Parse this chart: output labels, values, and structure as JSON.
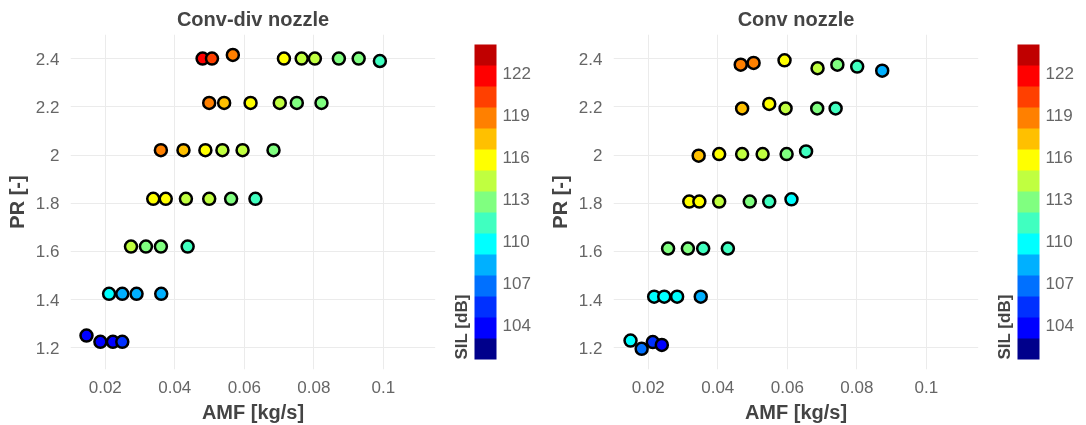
{
  "chart_data": [
    {
      "type": "scatter",
      "title": "Conv-div nozzle",
      "xlabel": "AMF [kg/s]",
      "ylabel": "PR [-]",
      "clabel": "SIL [dB]",
      "marker": "circle",
      "grid": true,
      "x": [
        0.048,
        0.0507,
        0.0567,
        0.0714,
        0.0765,
        0.0803,
        0.0872,
        0.0929,
        0.099,
        0.0499,
        0.0542,
        0.0618,
        0.0702,
        0.0751,
        0.0822,
        0.036,
        0.0425,
        0.0488,
        0.0537,
        0.0595,
        0.0684,
        0.0338,
        0.0374,
        0.0432,
        0.0499,
        0.0562,
        0.0632,
        0.0274,
        0.0317,
        0.036,
        0.0437,
        0.0211,
        0.0249,
        0.029,
        0.0361,
        0.0146,
        0.0186,
        0.0222,
        0.0249
      ],
      "values": [
        2.4,
        2.4,
        2.415,
        2.4,
        2.4,
        2.4,
        2.4,
        2.4,
        2.39,
        2.216,
        2.216,
        2.216,
        2.216,
        2.216,
        2.216,
        2.02,
        2.02,
        2.02,
        2.02,
        2.02,
        2.02,
        1.818,
        1.818,
        1.818,
        1.818,
        1.818,
        1.818,
        1.62,
        1.62,
        1.62,
        1.62,
        1.424,
        1.424,
        1.424,
        1.424,
        1.251,
        1.225,
        1.225,
        1.225
      ],
      "cvalues": [
        121,
        120,
        118.5,
        115,
        114,
        113.5,
        112.5,
        112,
        111.5,
        118,
        117,
        115.5,
        114,
        113,
        112.5,
        118,
        116.5,
        115.5,
        114.5,
        113.5,
        112,
        116,
        115.5,
        114.5,
        113.5,
        112.5,
        111,
        114,
        113,
        112.5,
        111,
        109,
        108.5,
        108.5,
        108,
        104,
        103,
        104,
        105
      ],
      "xlim": [
        0.01,
        0.115
      ],
      "ylim": [
        1.11,
        2.5
      ],
      "xticks": [
        0.02,
        0.04,
        0.06,
        0.08,
        0.1
      ],
      "yticks": [
        1.2,
        1.4,
        1.6,
        1.8,
        2,
        2.2,
        2.4
      ],
      "clim": [
        101.5,
        124
      ],
      "cticks": [
        104,
        107,
        110,
        113,
        116,
        119,
        122
      ]
    },
    {
      "type": "scatter",
      "title": "Conv nozzle",
      "xlabel": "AMF [kg/s]",
      "ylabel": "PR [-]",
      "clabel": "SIL [dB]",
      "marker": "circle",
      "grid": true,
      "x": [
        0.0466,
        0.0503,
        0.0592,
        0.0687,
        0.0744,
        0.0801,
        0.0873,
        0.047,
        0.0548,
        0.0595,
        0.0686,
        0.0739,
        0.0345,
        0.0404,
        0.047,
        0.0529,
        0.0598,
        0.0654,
        0.0318,
        0.0347,
        0.0404,
        0.0492,
        0.0548,
        0.0612,
        0.0257,
        0.0314,
        0.0358,
        0.0429,
        0.0217,
        0.0246,
        0.0283,
        0.0351,
        0.0149,
        0.0181,
        0.0213,
        0.0239
      ],
      "values": [
        2.375,
        2.382,
        2.393,
        2.36,
        2.375,
        2.367,
        2.35,
        2.193,
        2.212,
        2.193,
        2.193,
        2.193,
        1.997,
        2.004,
        2.004,
        2.004,
        2.004,
        2.015,
        1.807,
        1.807,
        1.807,
        1.807,
        1.807,
        1.816,
        1.612,
        1.612,
        1.612,
        1.612,
        1.412,
        1.412,
        1.412,
        1.412,
        1.23,
        1.196,
        1.224,
        1.212
      ],
      "cvalues": [
        119,
        118.5,
        116,
        114,
        112,
        110.5,
        108.5,
        117,
        115.5,
        114.5,
        112,
        111,
        117,
        115.5,
        114.5,
        113.5,
        112,
        110.5,
        115.5,
        115,
        114,
        112.5,
        111,
        110,
        113,
        112.5,
        111.5,
        110.5,
        110,
        109.5,
        109,
        108.5,
        109.5,
        107,
        105,
        104
      ],
      "xlim": [
        0.01,
        0.115
      ],
      "ylim": [
        1.11,
        2.5
      ],
      "xticks": [
        0.02,
        0.04,
        0.06,
        0.08,
        0.1
      ],
      "yticks": [
        1.2,
        1.4,
        1.6,
        1.8,
        2,
        2.2,
        2.4
      ],
      "clim": [
        101.5,
        124
      ],
      "cticks": [
        104,
        107,
        110,
        113,
        116,
        119,
        122
      ]
    }
  ]
}
